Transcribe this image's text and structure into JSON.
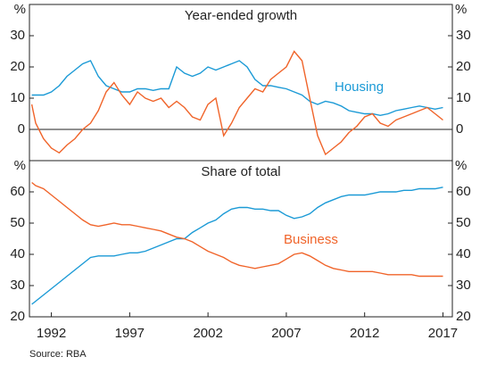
{
  "chart_data": [
    {
      "type": "line",
      "title": "Year-ended growth",
      "unit": "%",
      "zero_line": true,
      "xlim": [
        1990.6,
        2017.6
      ],
      "ylim": [
        -10,
        40
      ],
      "yticks": [
        0,
        10,
        20,
        30
      ],
      "x": [
        1990.75,
        1991,
        1991.5,
        1992,
        1992.5,
        1993,
        1993.5,
        1994,
        1994.5,
        1995,
        1995.5,
        1996,
        1996.5,
        1997,
        1997.5,
        1998,
        1998.5,
        1999,
        1999.5,
        2000,
        2000.5,
        2001,
        2001.5,
        2002,
        2002.5,
        2003,
        2003.5,
        2004,
        2004.5,
        2005,
        2005.5,
        2006,
        2006.5,
        2007,
        2007.5,
        2008,
        2008.5,
        2009,
        2009.5,
        2010,
        2010.5,
        2011,
        2011.5,
        2012,
        2012.5,
        2013,
        2013.5,
        2014,
        2014.5,
        2015,
        2015.5,
        2016,
        2016.5,
        2017
      ],
      "series": [
        {
          "name": "Housing",
          "color": "#1b9ad6",
          "values": [
            11,
            11,
            11,
            12,
            14,
            17,
            19,
            21,
            22,
            17,
            14,
            13,
            12,
            12,
            13,
            13,
            12.5,
            13,
            13,
            20,
            18,
            17,
            18,
            20,
            19,
            20,
            21,
            22,
            20,
            16,
            14,
            14,
            13.5,
            13,
            12,
            11,
            9,
            8,
            9,
            8.5,
            7.5,
            6,
            5.5,
            5,
            5,
            4.5,
            5,
            6,
            6.5,
            7,
            7.5,
            7,
            6.5,
            7
          ]
        },
        {
          "color": "#f0642a",
          "values": [
            8,
            2,
            -3,
            -6,
            -7.5,
            -5,
            -3,
            0,
            2,
            6,
            12,
            15,
            11,
            8,
            12,
            10,
            9,
            10,
            7,
            9,
            7,
            4,
            3,
            8,
            10,
            -2,
            2,
            7,
            10,
            13,
            12,
            16,
            18,
            20,
            25,
            22,
            10,
            -2,
            -8,
            -6,
            -4,
            -1,
            1,
            4,
            5,
            2,
            1,
            3,
            4,
            5,
            6,
            7,
            5,
            3
          ]
        }
      ]
    },
    {
      "type": "line",
      "title": "Share of total",
      "unit": "%",
      "xlim": [
        1990.6,
        2017.6
      ],
      "ylim": [
        20,
        70
      ],
      "yticks": [
        20,
        30,
        40,
        50,
        60
      ],
      "xticks": [
        1992,
        1997,
        2002,
        2007,
        2012,
        2017
      ],
      "x": [
        1990.75,
        1991,
        1991.5,
        1992,
        1992.5,
        1993,
        1993.5,
        1994,
        1994.5,
        1995,
        1995.5,
        1996,
        1996.5,
        1997,
        1997.5,
        1998,
        1998.5,
        1999,
        1999.5,
        2000,
        2000.5,
        2001,
        2001.5,
        2002,
        2002.5,
        2003,
        2003.5,
        2004,
        2004.5,
        2005,
        2005.5,
        2006,
        2006.5,
        2007,
        2007.5,
        2008,
        2008.5,
        2009,
        2009.5,
        2010,
        2010.5,
        2011,
        2011.5,
        2012,
        2012.5,
        2013,
        2013.5,
        2014,
        2014.5,
        2015,
        2015.5,
        2016,
        2016.5,
        2017
      ],
      "series": [
        {
          "color": "#1b9ad6",
          "values": [
            24,
            25,
            27,
            29,
            31,
            33,
            35,
            37,
            39,
            39.5,
            39.5,
            39.5,
            40,
            40.5,
            40.5,
            41,
            42,
            43,
            44,
            45,
            45,
            47,
            48.5,
            50,
            51,
            53,
            54.5,
            55,
            55,
            54.5,
            54.5,
            54,
            54,
            52.5,
            51.5,
            52,
            53,
            55,
            56.5,
            57.5,
            58.5,
            59,
            59,
            59,
            59.5,
            60,
            60,
            60,
            60.5,
            60.5,
            61,
            61,
            61,
            61.5
          ]
        },
        {
          "name": "Business",
          "color": "#f0642a",
          "values": [
            63,
            62,
            61,
            59,
            57,
            55,
            53,
            51,
            49.5,
            49,
            49.5,
            50,
            49.5,
            49.5,
            49,
            48.5,
            48,
            47.5,
            46.5,
            45.5,
            45,
            44,
            42.5,
            41,
            40,
            39,
            37.5,
            36.5,
            36,
            35.5,
            36,
            36.5,
            37,
            38.5,
            40,
            40.5,
            39.5,
            38,
            36.5,
            35.5,
            35,
            34.5,
            34.5,
            34.5,
            34.5,
            34,
            33.5,
            33.5,
            33.5,
            33.5,
            33,
            33,
            33,
            33
          ]
        }
      ]
    }
  ],
  "source": "Source:   RBA"
}
